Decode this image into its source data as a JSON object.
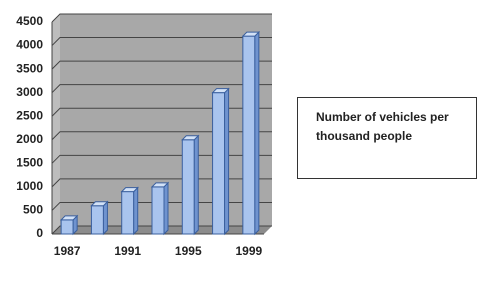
{
  "chart_data": {
    "type": "bar",
    "categories": [
      "1987",
      null,
      "1991",
      null,
      "1995",
      null,
      "1999"
    ],
    "series": [
      {
        "name": "Number of vehicles per thousand people",
        "color": "#a9c4ee",
        "values": [
          300,
          600,
          900,
          1000,
          2000,
          3000,
          4200
        ]
      }
    ],
    "ylim": [
      0,
      4500
    ],
    "yticks": [
      0,
      500,
      1000,
      1500,
      2000,
      2500,
      3000,
      3500,
      4000,
      4500
    ],
    "grid": true
  }
}
